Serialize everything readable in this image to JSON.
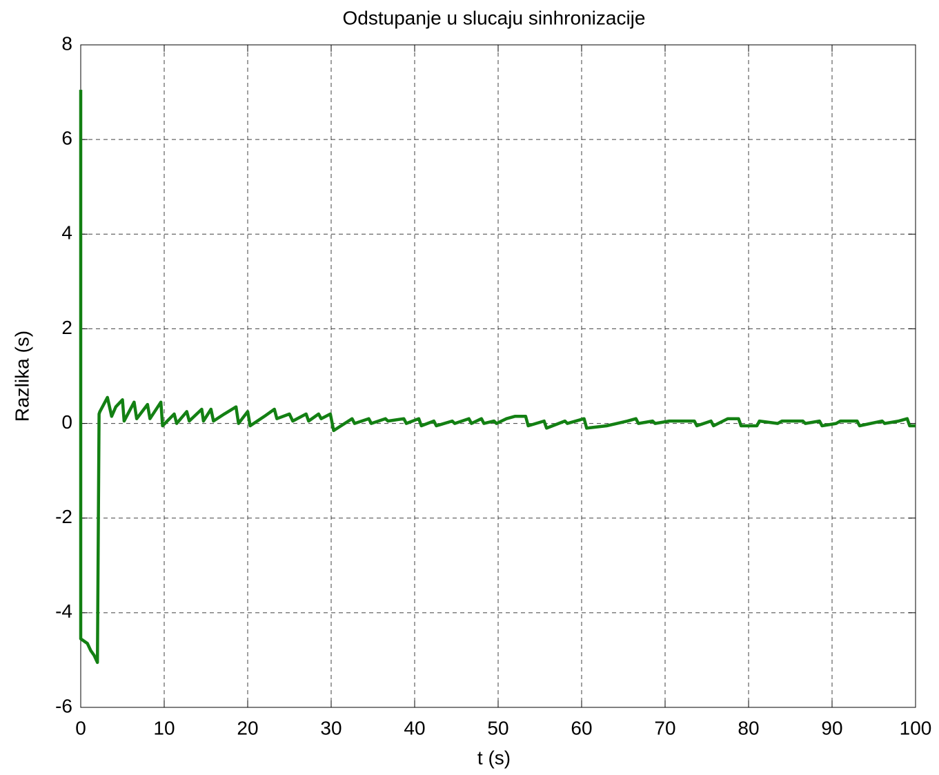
{
  "chart_data": {
    "type": "line",
    "title": "Odstupanje u slucaju sinhronizacije",
    "xlabel": "t (s)",
    "ylabel": "Razlika (s)",
    "color": "#138013",
    "x": [
      0,
      0,
      0.8,
      1.2,
      1.6,
      2.0,
      2.2,
      2.3,
      3.2,
      3.7,
      4.2,
      5.0,
      5.2,
      6.4,
      6.7,
      8.0,
      8.3,
      9.6,
      9.8,
      11.2,
      11.5,
      12.7,
      13.0,
      14.5,
      14.7,
      15.6,
      15.9,
      17.2,
      18.6,
      18.9,
      20.0,
      20.3,
      22.0,
      23.2,
      23.5,
      25.0,
      25.4,
      27.0,
      27.3,
      28.5,
      28.8,
      29.9,
      30.3,
      32.5,
      32.8,
      34.5,
      34.8,
      36.5,
      36.8,
      38.7,
      39.0,
      40.5,
      40.8,
      42.3,
      42.6,
      44.5,
      44.8,
      46.5,
      46.8,
      48.0,
      48.3,
      49.5,
      49.8,
      51.0,
      52.0,
      53.3,
      53.6,
      55.5,
      55.8,
      58.0,
      58.3,
      60.3,
      60.6,
      63.0,
      65.5,
      66.5,
      66.8,
      68.5,
      68.8,
      70.5,
      71.0,
      73.5,
      73.8,
      75.5,
      75.8,
      77.5,
      78.8,
      79.1,
      81.0,
      81.3,
      83.5,
      84.0,
      86.5,
      86.8,
      88.5,
      88.8,
      90.5,
      91.0,
      93.0,
      93.3,
      96.0,
      96.3,
      98.0,
      99.0,
      99.3,
      100
    ],
    "values": [
      7.05,
      -4.55,
      -4.65,
      -4.8,
      -4.9,
      -5.05,
      0.2,
      0.25,
      0.55,
      0.15,
      0.35,
      0.5,
      0.05,
      0.45,
      0.1,
      0.4,
      0.1,
      0.45,
      -0.05,
      0.2,
      0.0,
      0.25,
      0.05,
      0.3,
      0.05,
      0.3,
      0.05,
      0.2,
      0.35,
      0.0,
      0.25,
      -0.05,
      0.15,
      0.3,
      0.1,
      0.2,
      0.05,
      0.2,
      0.05,
      0.2,
      0.1,
      0.2,
      -0.15,
      0.1,
      0.0,
      0.1,
      0.0,
      0.1,
      0.05,
      0.1,
      0.0,
      0.1,
      -0.05,
      0.05,
      -0.05,
      0.05,
      0.0,
      0.1,
      0.0,
      0.1,
      0.0,
      0.05,
      0.0,
      0.1,
      0.15,
      0.15,
      -0.05,
      0.05,
      -0.1,
      0.05,
      0.0,
      0.1,
      -0.1,
      -0.05,
      0.05,
      0.1,
      0.0,
      0.05,
      0.0,
      0.05,
      0.05,
      0.05,
      -0.05,
      0.05,
      -0.05,
      0.1,
      0.1,
      -0.05,
      -0.05,
      0.05,
      0.0,
      0.05,
      0.05,
      0.0,
      0.05,
      -0.05,
      0.0,
      0.05,
      0.05,
      -0.05,
      0.05,
      0.0,
      0.05,
      0.1,
      -0.05,
      -0.05
    ],
    "xlim": [
      0,
      100
    ],
    "xticks": [
      0,
      10,
      20,
      30,
      40,
      50,
      60,
      70,
      80,
      90,
      100
    ],
    "ylim": [
      -6,
      8
    ],
    "yticks": [
      -6,
      -4,
      -2,
      0,
      2,
      4,
      6,
      8
    ],
    "grid": true
  }
}
